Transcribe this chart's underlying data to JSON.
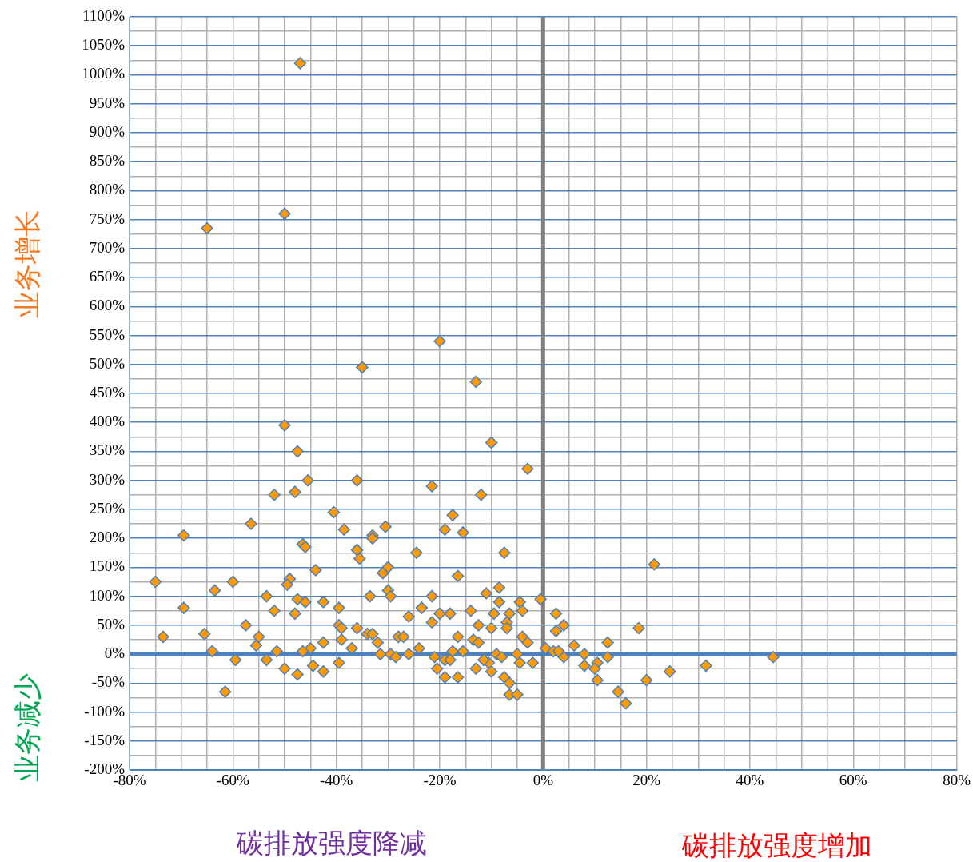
{
  "chart_data": {
    "type": "scatter",
    "marker": "diamond",
    "grid": true,
    "annotations": [
      "业务增长",
      "业务减少",
      "碳排放强度降减",
      "碳排放强度增加"
    ],
    "xlim": [
      -80,
      80
    ],
    "xticks": [
      {
        "value": -80,
        "label": "-80%"
      },
      {
        "value": -75,
        "label": null
      },
      {
        "value": -70,
        "label": null
      },
      {
        "value": -65,
        "label": null
      },
      {
        "value": -60,
        "label": "-60%"
      },
      {
        "value": -55,
        "label": null
      },
      {
        "value": -50,
        "label": null
      },
      {
        "value": -45,
        "label": null
      },
      {
        "value": -40,
        "label": "-40%"
      },
      {
        "value": -35,
        "label": null
      },
      {
        "value": -30,
        "label": null
      },
      {
        "value": -25,
        "label": null
      },
      {
        "value": -20,
        "label": "-20%"
      },
      {
        "value": -15,
        "label": null
      },
      {
        "value": -10,
        "label": null
      },
      {
        "value": -5,
        "label": null
      },
      {
        "value": 0,
        "label": "0%"
      },
      {
        "value": 5,
        "label": null
      },
      {
        "value": 10,
        "label": null
      },
      {
        "value": 15,
        "label": null
      },
      {
        "value": 20,
        "label": "20%"
      },
      {
        "value": 25,
        "label": null
      },
      {
        "value": 30,
        "label": null
      },
      {
        "value": 35,
        "label": null
      },
      {
        "value": 40,
        "label": "40%"
      },
      {
        "value": 45,
        "label": null
      },
      {
        "value": 50,
        "label": null
      },
      {
        "value": 55,
        "label": null
      },
      {
        "value": 60,
        "label": "60%"
      },
      {
        "value": 65,
        "label": null
      },
      {
        "value": 70,
        "label": null
      },
      {
        "value": 75,
        "label": null
      },
      {
        "value": 80,
        "label": "80%"
      }
    ],
    "ylim": [
      -200,
      1100
    ],
    "yticks": [
      {
        "value": -200,
        "label": "-200%"
      },
      {
        "value": -175,
        "label": null
      },
      {
        "value": -150,
        "label": "-150%"
      },
      {
        "value": -125,
        "label": null
      },
      {
        "value": -100,
        "label": "-100%"
      },
      {
        "value": -75,
        "label": null
      },
      {
        "value": -50,
        "label": "-50%"
      },
      {
        "value": -25,
        "label": null
      },
      {
        "value": 0,
        "label": "0%"
      },
      {
        "value": 25,
        "label": null
      },
      {
        "value": 50,
        "label": "50%"
      },
      {
        "value": 75,
        "label": null
      },
      {
        "value": 100,
        "label": "100%"
      },
      {
        "value": 125,
        "label": null
      },
      {
        "value": 150,
        "label": "150%"
      },
      {
        "value": 175,
        "label": null
      },
      {
        "value": 200,
        "label": "200%"
      },
      {
        "value": 225,
        "label": null
      },
      {
        "value": 250,
        "label": "250%"
      },
      {
        "value": 275,
        "label": null
      },
      {
        "value": 300,
        "label": "300%"
      },
      {
        "value": 325,
        "label": null
      },
      {
        "value": 350,
        "label": "350%"
      },
      {
        "value": 375,
        "label": null
      },
      {
        "value": 400,
        "label": "400%"
      },
      {
        "value": 425,
        "label": null
      },
      {
        "value": 450,
        "label": "450%"
      },
      {
        "value": 475,
        "label": null
      },
      {
        "value": 500,
        "label": "500%"
      },
      {
        "value": 525,
        "label": null
      },
      {
        "value": 550,
        "label": "550%"
      },
      {
        "value": 575,
        "label": null
      },
      {
        "value": 600,
        "label": "600%"
      },
      {
        "value": 625,
        "label": null
      },
      {
        "value": 650,
        "label": "650%"
      },
      {
        "value": 675,
        "label": null
      },
      {
        "value": 700,
        "label": "700%"
      },
      {
        "value": 725,
        "label": null
      },
      {
        "value": 750,
        "label": "750%"
      },
      {
        "value": 775,
        "label": null
      },
      {
        "value": 800,
        "label": "800%"
      },
      {
        "value": 825,
        "label": null
      },
      {
        "value": 850,
        "label": "850%"
      },
      {
        "value": 875,
        "label": null
      },
      {
        "value": 900,
        "label": "900%"
      },
      {
        "value": 925,
        "label": null
      },
      {
        "value": 950,
        "label": "950%"
      },
      {
        "value": 975,
        "label": null
      },
      {
        "value": 1000,
        "label": "1000%"
      },
      {
        "value": 1025,
        "label": null
      },
      {
        "value": 1050,
        "label": "1050%"
      },
      {
        "value": 1075,
        "label": null
      },
      {
        "value": 1100,
        "label": "1100%"
      }
    ],
    "ref_lines": [
      {
        "axis": "x",
        "value": 0,
        "label": null,
        "color": "#808080"
      },
      {
        "axis": "y",
        "value": 0,
        "label": null,
        "color": "#4f81bd"
      }
    ],
    "series": [
      {
        "color": "#ff9900",
        "x": [
          -47,
          -50,
          -65,
          -20,
          -35,
          -13,
          -50,
          -10,
          -47.5,
          -3,
          -45.5,
          -36,
          -21.5,
          -12,
          -52,
          -48,
          -40.5,
          -17.5,
          -30.5,
          -33,
          -33,
          -69.5,
          -38.5,
          -19,
          -15.5,
          -56.5,
          -46.5,
          -46,
          -36,
          -35.5,
          -24.5,
          -7.5,
          21.5,
          -30,
          -44,
          -16.5,
          -31,
          -75,
          -60,
          -49,
          -49.5,
          -8.5,
          -63.5,
          -30,
          -29.5,
          -53.5,
          -33.5,
          -21.5,
          -11,
          -0.5,
          -47.5,
          -46,
          -42.5,
          -8.5,
          -4.5,
          -39.5,
          -69.5,
          -23.5,
          -14,
          -18,
          -9.5,
          2.5,
          -20,
          -52,
          -48,
          -26,
          -4,
          -6.5,
          -57.5,
          -21.5,
          4,
          -12.5,
          -39.5,
          -36,
          -39,
          18.5,
          -65.5,
          -34,
          -7,
          -7,
          -16.5,
          -73.5,
          -55,
          2.5,
          -33,
          -28,
          -27,
          -13.5,
          -10,
          -4,
          -3,
          -32,
          -42.5,
          -39,
          12.5,
          6,
          -55.5,
          -45,
          -51.5,
          -64,
          -46.5,
          -37,
          -26,
          -24,
          -15.5,
          -9,
          -5,
          0.5,
          8,
          12.5,
          10.5,
          -53.5,
          -59.5,
          -31.5,
          -29.5,
          -28.5,
          -21,
          -19,
          -10.5,
          -2,
          4,
          44.5,
          31.5,
          -44.5,
          -39.5,
          -50,
          -42.5,
          -47.5,
          -20.5,
          -13,
          -16.5,
          -19,
          -7.5,
          8,
          10,
          10.5,
          24.5,
          20,
          -6.5,
          -61.5,
          14.5,
          16,
          -6.5,
          -5,
          -10,
          2,
          3,
          -12.5,
          -11.5,
          -8,
          -4.5,
          -17.5,
          -18
        ],
        "values": [
          1020,
          760,
          735,
          540,
          495,
          470,
          395,
          365,
          350,
          320,
          300,
          300,
          290,
          275,
          275,
          280,
          245,
          240,
          220,
          205,
          200,
          205,
          215,
          215,
          210,
          225,
          190,
          185,
          180,
          165,
          175,
          175,
          155,
          150,
          145,
          135,
          140,
          125,
          125,
          130,
          120,
          115,
          110,
          110,
          100,
          100,
          100,
          100,
          105,
          95,
          95,
          90,
          90,
          90,
          90,
          80,
          80,
          80,
          75,
          70,
          70,
          70,
          70,
          75,
          70,
          65,
          75,
          70,
          50,
          55,
          50,
          50,
          50,
          45,
          45,
          45,
          35,
          35,
          55,
          45,
          30,
          30,
          30,
          40,
          35,
          30,
          30,
          25,
          45,
          30,
          20,
          20,
          20,
          25,
          20,
          15,
          15,
          10,
          5,
          5,
          5,
          10,
          0,
          10,
          5,
          0,
          0,
          10,
          0,
          -5,
          -15,
          -10,
          -10,
          0,
          0,
          -5,
          -5,
          -10,
          -15,
          -15,
          -5,
          -5,
          -20,
          -20,
          -15,
          -25,
          -30,
          -35,
          -25,
          -25,
          -40,
          -40,
          -40,
          -20,
          -25,
          -45,
          -30,
          -45,
          -50,
          -65,
          -65,
          -85,
          -70,
          -70,
          -30,
          5,
          5,
          20,
          -10,
          -5,
          -15,
          5,
          -10
        ]
      }
    ]
  }
}
